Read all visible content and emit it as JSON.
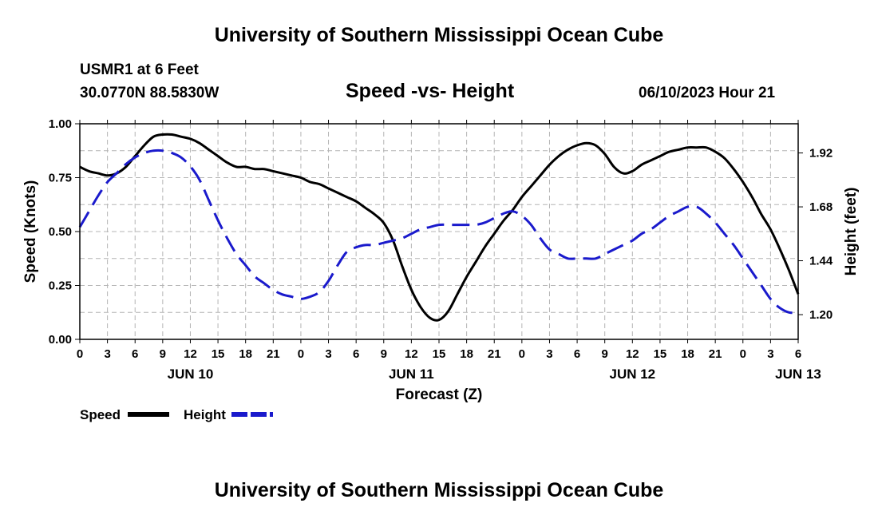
{
  "header": {
    "title": "University of Southern Mississippi Ocean Cube",
    "station": "USMR1 at 6 Feet",
    "coordinates": "30.0770N  88.5830W",
    "datetime": "06/10/2023 Hour 21",
    "footer_title": "University of Southern Mississippi Ocean Cube"
  },
  "chart_data": {
    "type": "line",
    "title": "Speed -vs- Height",
    "xlabel": "Forecast (Z)",
    "ylabel": "Speed (Knots)",
    "y2label": "Height (feet)",
    "x_ticks": [
      "0",
      "3",
      "6",
      "9",
      "12",
      "15",
      "18",
      "21",
      "0",
      "3",
      "6",
      "9",
      "12",
      "15",
      "18",
      "21",
      "0",
      "3",
      "6",
      "9",
      "12",
      "15",
      "18",
      "21",
      "0",
      "3",
      "6"
    ],
    "day_labels": [
      {
        "label": "JUN 10",
        "hour": 12
      },
      {
        "label": "JUN 11",
        "hour": 36
      },
      {
        "label": "JUN 12",
        "hour": 60
      },
      {
        "label": "JUN 13",
        "hour": 78
      }
    ],
    "xlim": [
      0,
      78
    ],
    "ylim": [
      0,
      1
    ],
    "y_ticks": [
      "0.00",
      "0.25",
      "0.50",
      "0.75",
      "1.00"
    ],
    "y_tick_values": [
      0,
      0.25,
      0.5,
      0.75,
      1.0
    ],
    "y2lim": [
      1.09,
      2.05
    ],
    "y2_ticks": [
      "1.20",
      "1.44",
      "1.68",
      "1.92"
    ],
    "y2_tick_values": [
      1.2,
      1.44,
      1.68,
      1.92
    ],
    "grid": true,
    "series": [
      {
        "name": "Speed",
        "axis": "left",
        "color": "#000000",
        "dash": "solid",
        "x": [
          0,
          1,
          2,
          3,
          4,
          5,
          6,
          7,
          8,
          9,
          10,
          11,
          12,
          13,
          14,
          15,
          16,
          17,
          18,
          19,
          20,
          21,
          22,
          23,
          24,
          25,
          26,
          27,
          28,
          29,
          30,
          31,
          32,
          33,
          34,
          35,
          36,
          37,
          38,
          39,
          40,
          41,
          42,
          43,
          44,
          45,
          46,
          47,
          48,
          49,
          50,
          51,
          52,
          53,
          54,
          55,
          56,
          57,
          58,
          59,
          60,
          61,
          62,
          63,
          64,
          65,
          66,
          67,
          68,
          69,
          70,
          71,
          72,
          73,
          74,
          75,
          76,
          77,
          78
        ],
        "values": [
          0.8,
          0.78,
          0.77,
          0.76,
          0.77,
          0.8,
          0.85,
          0.9,
          0.94,
          0.95,
          0.95,
          0.94,
          0.93,
          0.91,
          0.88,
          0.85,
          0.82,
          0.8,
          0.8,
          0.79,
          0.79,
          0.78,
          0.77,
          0.76,
          0.75,
          0.73,
          0.72,
          0.7,
          0.68,
          0.66,
          0.64,
          0.61,
          0.58,
          0.54,
          0.46,
          0.34,
          0.23,
          0.15,
          0.1,
          0.09,
          0.13,
          0.21,
          0.29,
          0.36,
          0.43,
          0.49,
          0.55,
          0.6,
          0.66,
          0.71,
          0.76,
          0.81,
          0.85,
          0.88,
          0.9,
          0.91,
          0.9,
          0.86,
          0.8,
          0.77,
          0.78,
          0.81,
          0.83,
          0.85,
          0.87,
          0.88,
          0.89,
          0.89,
          0.89,
          0.87,
          0.84,
          0.79,
          0.73,
          0.66,
          0.58,
          0.51,
          0.42,
          0.32,
          0.21
        ]
      },
      {
        "name": "Height",
        "axis": "right",
        "color": "#1a1acc",
        "dash": "dashed",
        "x": [
          0,
          1,
          2,
          3,
          4,
          5,
          6,
          7,
          8,
          9,
          10,
          11,
          12,
          13,
          14,
          15,
          16,
          17,
          18,
          19,
          20,
          21,
          22,
          23,
          24,
          25,
          26,
          27,
          28,
          29,
          30,
          31,
          32,
          33,
          34,
          35,
          36,
          37,
          38,
          39,
          40,
          41,
          42,
          43,
          44,
          45,
          46,
          47,
          48,
          49,
          50,
          51,
          52,
          53,
          54,
          55,
          56,
          57,
          58,
          59,
          60,
          61,
          62,
          63,
          64,
          65,
          66,
          67,
          68,
          69,
          70,
          71,
          72,
          73,
          74,
          75,
          76,
          77,
          78
        ],
        "values": [
          1.59,
          1.66,
          1.73,
          1.79,
          1.83,
          1.87,
          1.9,
          1.92,
          1.93,
          1.93,
          1.92,
          1.9,
          1.86,
          1.8,
          1.71,
          1.62,
          1.54,
          1.47,
          1.42,
          1.37,
          1.34,
          1.31,
          1.29,
          1.28,
          1.27,
          1.28,
          1.3,
          1.35,
          1.42,
          1.48,
          1.5,
          1.51,
          1.51,
          1.52,
          1.53,
          1.54,
          1.56,
          1.58,
          1.59,
          1.6,
          1.6,
          1.6,
          1.6,
          1.6,
          1.61,
          1.63,
          1.65,
          1.66,
          1.64,
          1.6,
          1.54,
          1.49,
          1.47,
          1.45,
          1.45,
          1.45,
          1.45,
          1.47,
          1.49,
          1.51,
          1.53,
          1.56,
          1.58,
          1.61,
          1.64,
          1.66,
          1.68,
          1.68,
          1.65,
          1.61,
          1.56,
          1.51,
          1.45,
          1.39,
          1.33,
          1.27,
          1.23,
          1.21,
          1.21
        ]
      }
    ],
    "legend": [
      {
        "label": "Speed",
        "color": "#000000",
        "dash": "solid"
      },
      {
        "label": "Height",
        "color": "#1a1acc",
        "dash": "dashed"
      }
    ],
    "legend_position": "bottom-left"
  }
}
